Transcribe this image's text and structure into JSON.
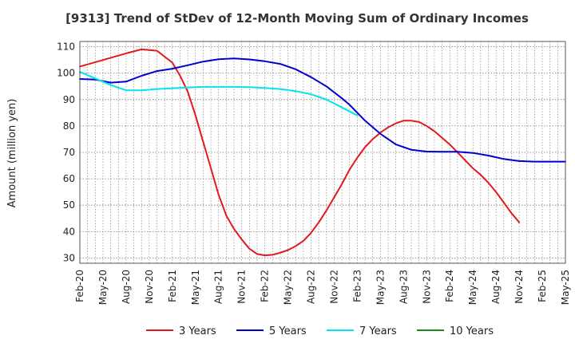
{
  "chart_data": {
    "type": "line",
    "title": "[9313]  Trend of StDev of 12-Month Moving Sum of Ordinary Incomes",
    "xlabel": "",
    "ylabel": "Amount (million yen)",
    "ylim": [
      28,
      112
    ],
    "yticks": [
      30,
      40,
      50,
      60,
      70,
      80,
      90,
      100,
      110
    ],
    "grid": true,
    "legend_position": "bottom",
    "x_tick_labels": [
      "Feb-20",
      "May-20",
      "Aug-20",
      "Nov-20",
      "Feb-21",
      "May-21",
      "Aug-21",
      "Nov-21",
      "Feb-22",
      "May-22",
      "Aug-22",
      "Nov-22",
      "Feb-23",
      "May-23",
      "Aug-23",
      "Nov-23",
      "Feb-24",
      "May-24",
      "Aug-24",
      "Nov-24",
      "Feb-25",
      "May-25"
    ],
    "series": [
      {
        "name": "3 Years",
        "color": "#e31a1c",
        "points": [
          [
            "Feb-20",
            102.5
          ],
          [
            "May-20",
            105
          ],
          [
            "Aug-20",
            107.5
          ],
          [
            "Oct-20",
            109
          ],
          [
            "Dec-20",
            108.5
          ],
          [
            "Feb-21",
            104
          ],
          [
            "Mar-21",
            99
          ],
          [
            "Apr-21",
            93
          ],
          [
            "May-21",
            84
          ],
          [
            "Jun-21",
            74
          ],
          [
            "Jul-21",
            64
          ],
          [
            "Aug-21",
            54
          ],
          [
            "Sep-21",
            46
          ],
          [
            "Oct-21",
            41
          ],
          [
            "Nov-21",
            37
          ],
          [
            "Dec-21",
            33.5
          ],
          [
            "Jan-22",
            31.5
          ],
          [
            "Feb-22",
            31
          ],
          [
            "Mar-22",
            31.2
          ],
          [
            "Apr-22",
            32
          ],
          [
            "May-22",
            33
          ],
          [
            "Jun-22",
            34.5
          ],
          [
            "Jul-22",
            36.5
          ],
          [
            "Aug-22",
            39.5
          ],
          [
            "Sep-22",
            43.5
          ],
          [
            "Oct-22",
            48
          ],
          [
            "Nov-22",
            53
          ],
          [
            "Dec-22",
            58
          ],
          [
            "Jan-23",
            63.5
          ],
          [
            "Feb-23",
            68
          ],
          [
            "Mar-23",
            72
          ],
          [
            "Apr-23",
            75
          ],
          [
            "May-23",
            77.5
          ],
          [
            "Jun-23",
            79.5
          ],
          [
            "Jul-23",
            81
          ],
          [
            "Aug-23",
            82
          ],
          [
            "Sep-23",
            82
          ],
          [
            "Oct-23",
            81.5
          ],
          [
            "Nov-23",
            80
          ],
          [
            "Dec-23",
            78
          ],
          [
            "Jan-24",
            75.5
          ],
          [
            "Feb-24",
            73
          ],
          [
            "Mar-24",
            70
          ],
          [
            "Apr-24",
            67
          ],
          [
            "May-24",
            64
          ],
          [
            "Jun-24",
            61.5
          ],
          [
            "Jul-24",
            58.5
          ],
          [
            "Aug-24",
            55
          ],
          [
            "Sep-24",
            51
          ],
          [
            "Oct-24",
            47
          ],
          [
            "Nov-24",
            43.5
          ]
        ]
      },
      {
        "name": "5 Years",
        "color": "#0000cc",
        "points": [
          [
            "Feb-20",
            97.8
          ],
          [
            "Apr-20",
            97.6
          ],
          [
            "Jun-20",
            96.4
          ],
          [
            "Aug-20",
            96.8
          ],
          [
            "Oct-20",
            99
          ],
          [
            "Dec-20",
            100.8
          ],
          [
            "Feb-21",
            101.7
          ],
          [
            "Apr-21",
            103
          ],
          [
            "Jun-21",
            104.4
          ],
          [
            "Aug-21",
            105.3
          ],
          [
            "Oct-21",
            105.6
          ],
          [
            "Dec-21",
            105.2
          ],
          [
            "Feb-22",
            104.5
          ],
          [
            "Apr-22",
            103.5
          ],
          [
            "Jun-22",
            101.5
          ],
          [
            "Aug-22",
            98.5
          ],
          [
            "Oct-22",
            95
          ],
          [
            "Dec-22",
            90.5
          ],
          [
            "Jan-23",
            88
          ],
          [
            "Mar-23",
            82
          ],
          [
            "May-23",
            77
          ],
          [
            "Jul-23",
            73
          ],
          [
            "Sep-23",
            71
          ],
          [
            "Nov-23",
            70.3
          ],
          [
            "Jan-24",
            70.2
          ],
          [
            "Mar-24",
            70.2
          ],
          [
            "May-24",
            69.8
          ],
          [
            "Jul-24",
            68.8
          ],
          [
            "Sep-24",
            67.5
          ],
          [
            "Nov-24",
            66.7
          ],
          [
            "Jan-25",
            66.5
          ],
          [
            "Mar-25",
            66.5
          ],
          [
            "May-25",
            66.5
          ]
        ]
      },
      {
        "name": "7 Years",
        "color": "#00e5ee",
        "points": [
          [
            "Feb-20",
            100.5
          ],
          [
            "Apr-20",
            98
          ],
          [
            "Jun-20",
            95.5
          ],
          [
            "Aug-20",
            93.5
          ],
          [
            "Oct-20",
            93.5
          ],
          [
            "Dec-20",
            94
          ],
          [
            "Feb-21",
            94.3
          ],
          [
            "Apr-21",
            94.6
          ],
          [
            "Jun-21",
            94.8
          ],
          [
            "Aug-21",
            94.8
          ],
          [
            "Oct-21",
            94.8
          ],
          [
            "Dec-21",
            94.7
          ],
          [
            "Feb-22",
            94.4
          ],
          [
            "Apr-22",
            94
          ],
          [
            "Jun-22",
            93.2
          ],
          [
            "Aug-22",
            92
          ],
          [
            "Oct-22",
            90
          ],
          [
            "Dec-22",
            87
          ],
          [
            "Feb-23",
            84
          ]
        ]
      },
      {
        "name": "10 Years",
        "color": "#1a8a1a",
        "points": []
      }
    ]
  }
}
